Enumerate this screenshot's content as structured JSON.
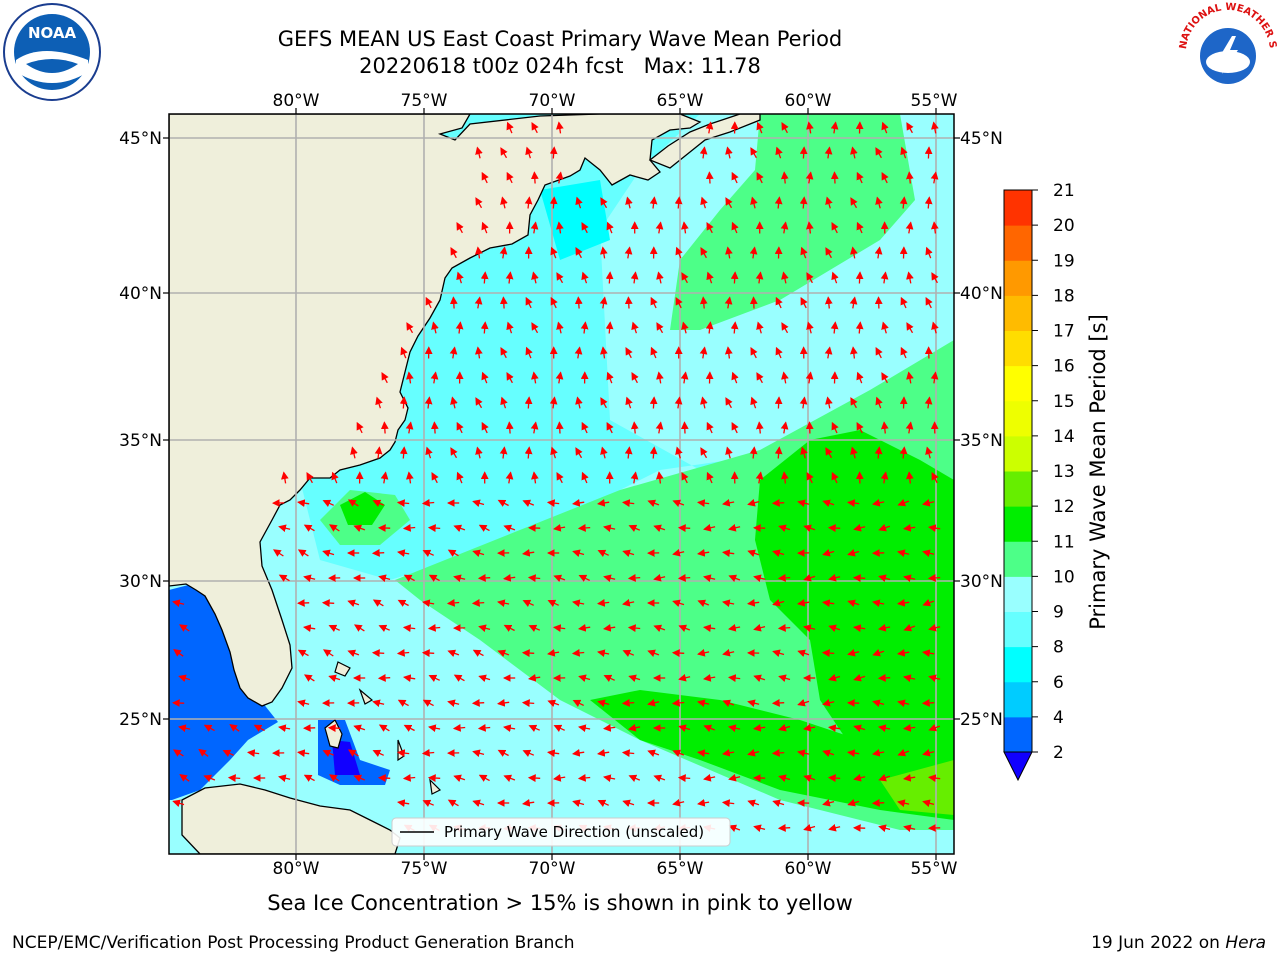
{
  "title": {
    "line1": "GEFS MEAN US East Coast Primary Wave Mean Period",
    "line2": "20220618 t00z 024h fcst   Max: 11.78"
  },
  "map": {
    "lon_labels": [
      "80°W",
      "75°W",
      "70°W",
      "65°W",
      "60°W",
      "55°W"
    ],
    "lat_labels": [
      "45°N",
      "40°N",
      "35°N",
      "30°N",
      "25°N"
    ],
    "legend_label": "Primary Wave Direction (unscaled)",
    "arrow_color": "#ff0000",
    "land_color": "#efefdb"
  },
  "colorbar": {
    "label": "Primary Wave Mean Period [s]",
    "ticks": [
      "2",
      "4",
      "6",
      "8",
      "9",
      "10",
      "11",
      "12",
      "13",
      "14",
      "15",
      "16",
      "17",
      "18",
      "19",
      "20",
      "21"
    ],
    "colors": [
      "#0066ff",
      "#00ccff",
      "#00ffff",
      "#66ffff",
      "#99ffff",
      "#4dff88",
      "#00ee00",
      "#66ee00",
      "#ccff00",
      "#eeff00",
      "#ffff00",
      "#ffdd00",
      "#ffbb00",
      "#ff9900",
      "#ff6600",
      "#ff3300"
    ],
    "under_color": "#1100ff"
  },
  "logos": {
    "noaa": "NOAA",
    "nws": "NATIONAL WEATHER SERVICE"
  },
  "subcaption": "Sea Ice Concentration > 15% is shown in pink to yellow",
  "footer": {
    "left": "NCEP/EMC/Verification Post Processing Product Generation Branch",
    "date": "19 Jun 2022 on ",
    "machine": "Hera"
  }
}
